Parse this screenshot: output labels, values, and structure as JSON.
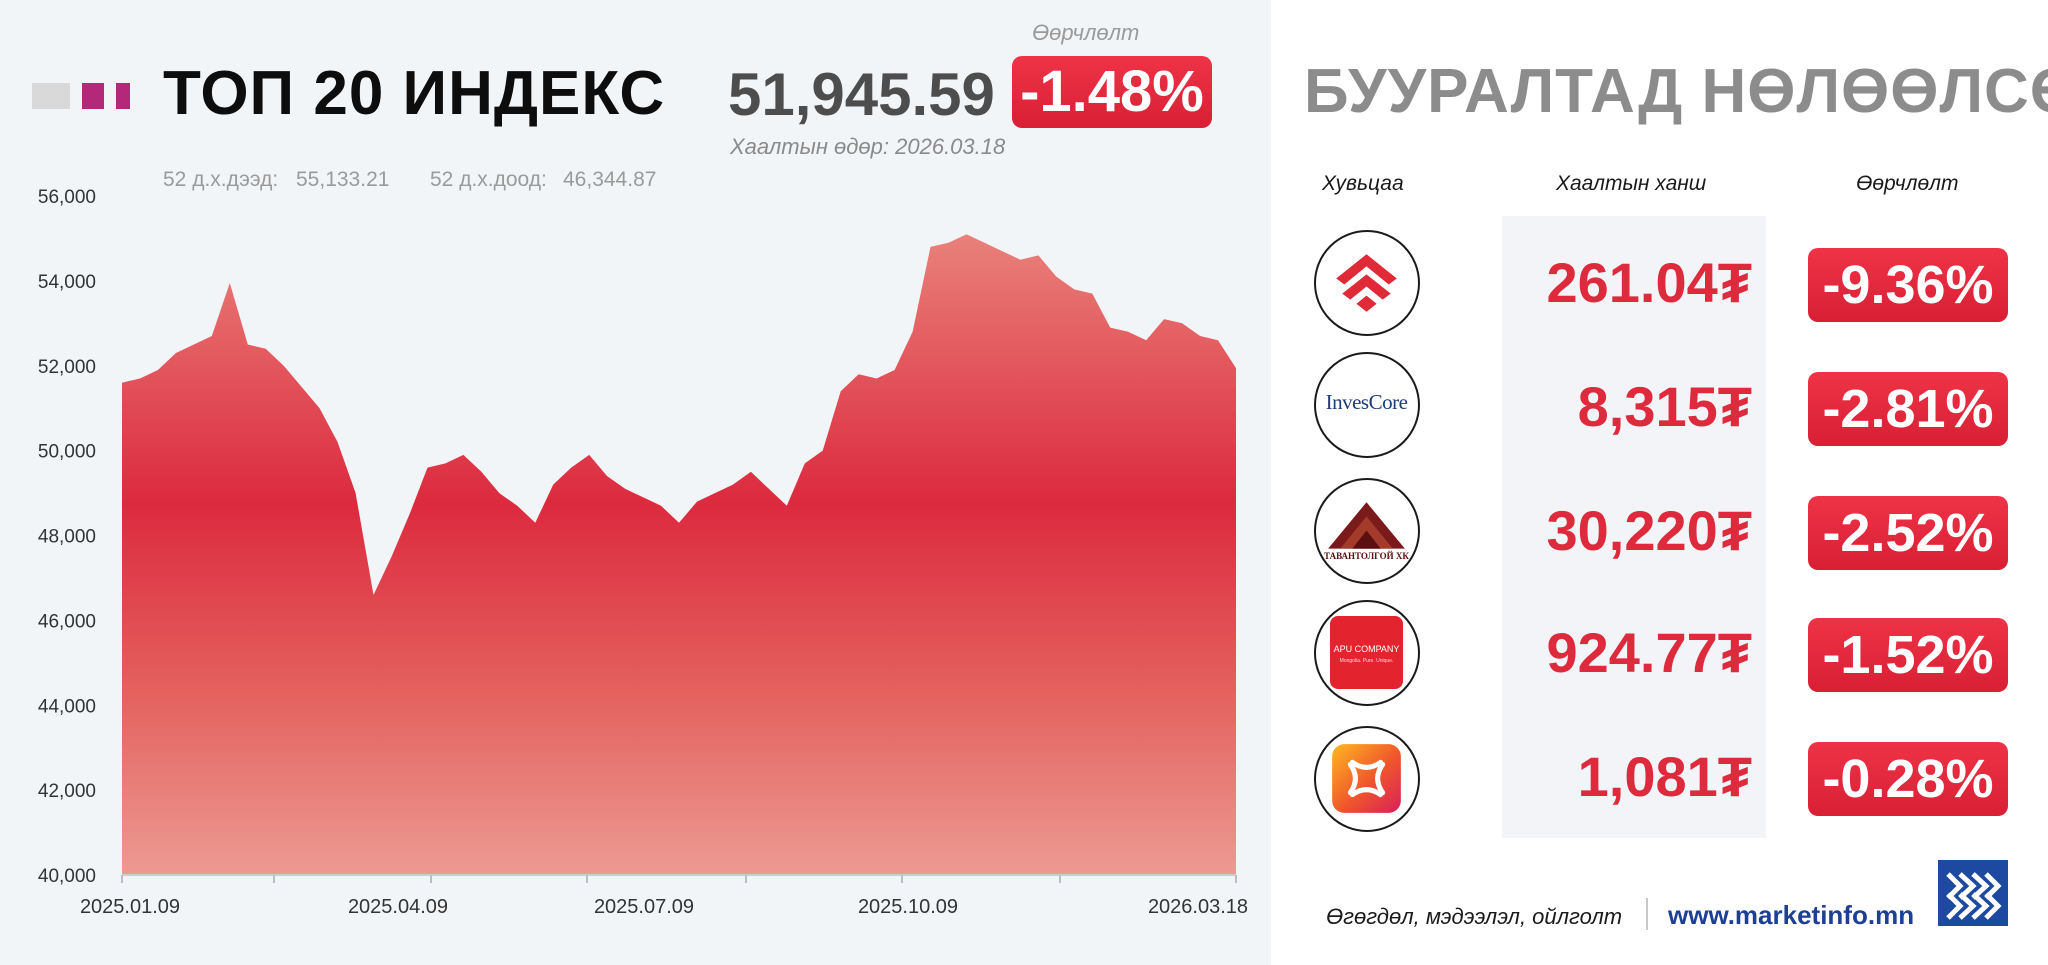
{
  "index": {
    "title": "ТОП 20 ИНДЕКС",
    "value": "51,945.59",
    "change_label": "Өөрчлөлт",
    "change": "-1.48%",
    "close_date": "Хаалтын өдөр: 2026.03.18",
    "high_label": "52 д.х.дээд:",
    "high_value": "55,133.21",
    "low_label": "52 д.х.доод:",
    "low_value": "46,344.87"
  },
  "colors": {
    "accent_red": "#dd2a3d",
    "logo_gray": "#d9d9d9",
    "logo_magenta": "#b4287a",
    "footer_blue": "#1d3f94"
  },
  "chart_data": {
    "type": "area",
    "x": [
      "2025.01.09",
      "2025.01.16",
      "2025.01.23",
      "2025.01.30",
      "2025.02.06",
      "2025.02.13",
      "2025.02.20",
      "2025.02.27",
      "2025.03.06",
      "2025.03.13",
      "2025.03.20",
      "2025.03.27",
      "2025.04.03",
      "2025.04.10",
      "2025.04.17",
      "2025.04.24",
      "2025.05.01",
      "2025.05.08",
      "2025.05.15",
      "2025.05.22",
      "2025.05.29",
      "2025.06.05",
      "2025.06.12",
      "2025.06.19",
      "2025.06.26",
      "2025.07.03",
      "2025.07.10",
      "2025.07.17",
      "2025.07.24",
      "2025.07.31",
      "2025.08.07",
      "2025.08.14",
      "2025.08.21",
      "2025.08.28",
      "2025.09.04",
      "2025.09.11",
      "2025.09.18",
      "2025.09.25",
      "2025.10.02",
      "2025.10.09",
      "2025.10.16",
      "2025.10.23",
      "2025.10.30",
      "2025.11.06",
      "2025.11.13",
      "2025.11.20",
      "2025.11.27",
      "2025.12.04",
      "2025.12.11",
      "2025.12.18",
      "2025.12.25",
      "2026.01.01",
      "2026.01.08",
      "2026.01.15",
      "2026.01.22",
      "2026.01.29",
      "2026.02.05",
      "2026.02.12",
      "2026.02.19",
      "2026.02.26",
      "2026.03.05",
      "2026.03.12",
      "2026.03.18"
    ],
    "y": [
      51600,
      51700,
      51900,
      52300,
      52500,
      52700,
      53950,
      52500,
      52400,
      52000,
      51500,
      51000,
      50200,
      49000,
      46600,
      47500,
      48500,
      49600,
      49700,
      49900,
      49500,
      49000,
      48700,
      48300,
      49200,
      49600,
      49900,
      49400,
      49100,
      48900,
      48700,
      48300,
      48800,
      49000,
      49200,
      49500,
      49100,
      48700,
      49700,
      50000,
      51400,
      51800,
      51700,
      51900,
      52800,
      54800,
      54900,
      55100,
      54900,
      54700,
      54500,
      54600,
      54100,
      53800,
      53700,
      52900,
      52800,
      52600,
      53100,
      53000,
      52700,
      52600,
      51945.59
    ],
    "ylim": [
      40000,
      56000
    ],
    "yticks": [
      "40,000",
      "42,000",
      "44,000",
      "46,000",
      "48,000",
      "50,000",
      "52,000",
      "54,000",
      "56,000"
    ],
    "xticks": [
      "2025.01.09",
      "2025.04.09",
      "2025.07.09",
      "2025.10.09",
      "2026.03.18"
    ],
    "xlabel": "",
    "ylabel": ""
  },
  "decliners": {
    "title": "БУУРАЛТАД НӨЛӨӨЛСӨН",
    "col_security": "Хувьцаа",
    "col_price": "Хаалтын ханш",
    "col_change": "Өөрчлөлт",
    "rows": [
      {
        "logo": "red-chevron-logo",
        "price": "261.04₮",
        "change": "-9.36%"
      },
      {
        "logo": "invescore-logo",
        "logo_text": "InvesCore",
        "price": "8,315₮",
        "change": "-2.81%"
      },
      {
        "logo": "tavantolgoi-logo",
        "logo_text": "ТАВАНТОЛГОЙ ХК",
        "price": "30,220₮",
        "change": "-2.52%"
      },
      {
        "logo": "apu-logo",
        "logo_text": "APU COMPANY",
        "logo_sub": "Mongolia. Pure. Unique.",
        "price": "924.77₮",
        "change": "-1.52%"
      },
      {
        "logo": "flower-app-logo",
        "price": "1,081₮",
        "change": "-0.28%"
      }
    ]
  },
  "footer": {
    "tagline": "Өгөгдөл, мэдээлэл, ойлголт",
    "url": "www.marketinfo.mn"
  }
}
